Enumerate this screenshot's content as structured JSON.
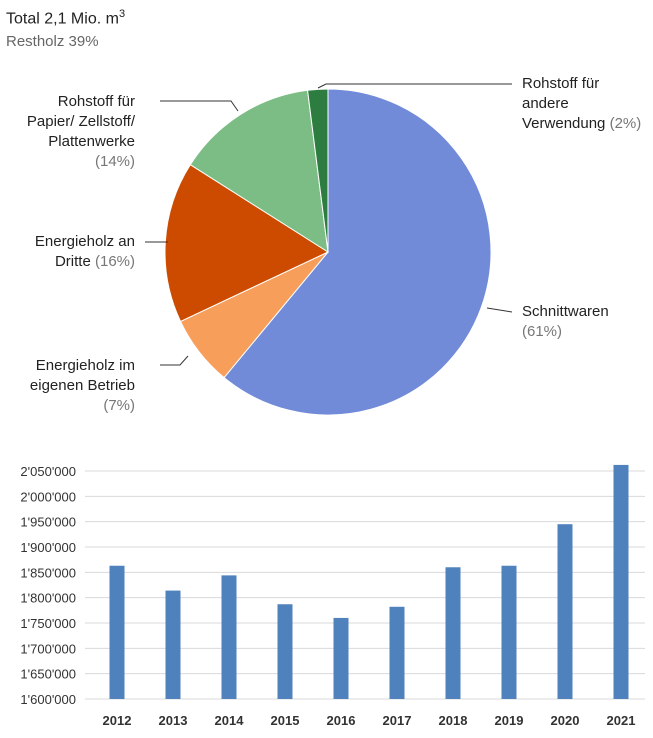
{
  "header": {
    "title": "Total 2,1 Mio. m",
    "title_sup": "3",
    "subtitle": "Restholz 39%"
  },
  "chart_data": [
    {
      "type": "pie",
      "title": "Total 2,1 Mio. m3",
      "subtitle": "Restholz 39%",
      "slices": [
        {
          "name": "Schnittwaren",
          "value": 61,
          "pct_label": "(61%)",
          "color": "#718bd8"
        },
        {
          "name": "Energieholz im eigenen Betrieb",
          "value": 7,
          "pct_label": "(7%)",
          "color": "#f89e5b"
        },
        {
          "name": "Energieholz an Dritte",
          "value": 16,
          "pct_label": "(16%)",
          "color": "#cc4b00"
        },
        {
          "name": "Rohstoff für Papier/ Zellstoff/ Plattenwerke",
          "value": 14,
          "pct_label": "(14%)",
          "color": "#7bbd84"
        },
        {
          "name": "Rohstoff für andere Verwendung",
          "value": 2,
          "pct_label": "(2%)",
          "color": "#2e7d40"
        }
      ]
    },
    {
      "type": "bar",
      "categories": [
        "2012",
        "2013",
        "2014",
        "2015",
        "2016",
        "2017",
        "2018",
        "2019",
        "2020",
        "2021"
      ],
      "values": [
        1863000,
        1814000,
        1844000,
        1787000,
        1760000,
        1782000,
        1860000,
        1863000,
        1945000,
        2062000
      ],
      "ylim": [
        1600000,
        2050000
      ],
      "yticks": [
        "1'600'000",
        "1'650'000",
        "1'700'000",
        "1'750'000",
        "1'800'000",
        "1'850'000",
        "1'900'000",
        "1'950'000",
        "2'000'000",
        "2'050'000"
      ],
      "color": "#4f81bd",
      "grid": true
    }
  ],
  "labels": {
    "l0a": "Schnittwaren",
    "l1a": "Energieholz im",
    "l1b": "eigenen Betrieb",
    "l2a": "Energieholz an",
    "l2b": "Dritte",
    "l3a": "Rohstoff für",
    "l3b": "Papier/ Zellstoff/",
    "l3c": "Plattenwerke",
    "l4a": "Rohstoff für",
    "l4b": "andere",
    "l4c": "Verwendung"
  }
}
